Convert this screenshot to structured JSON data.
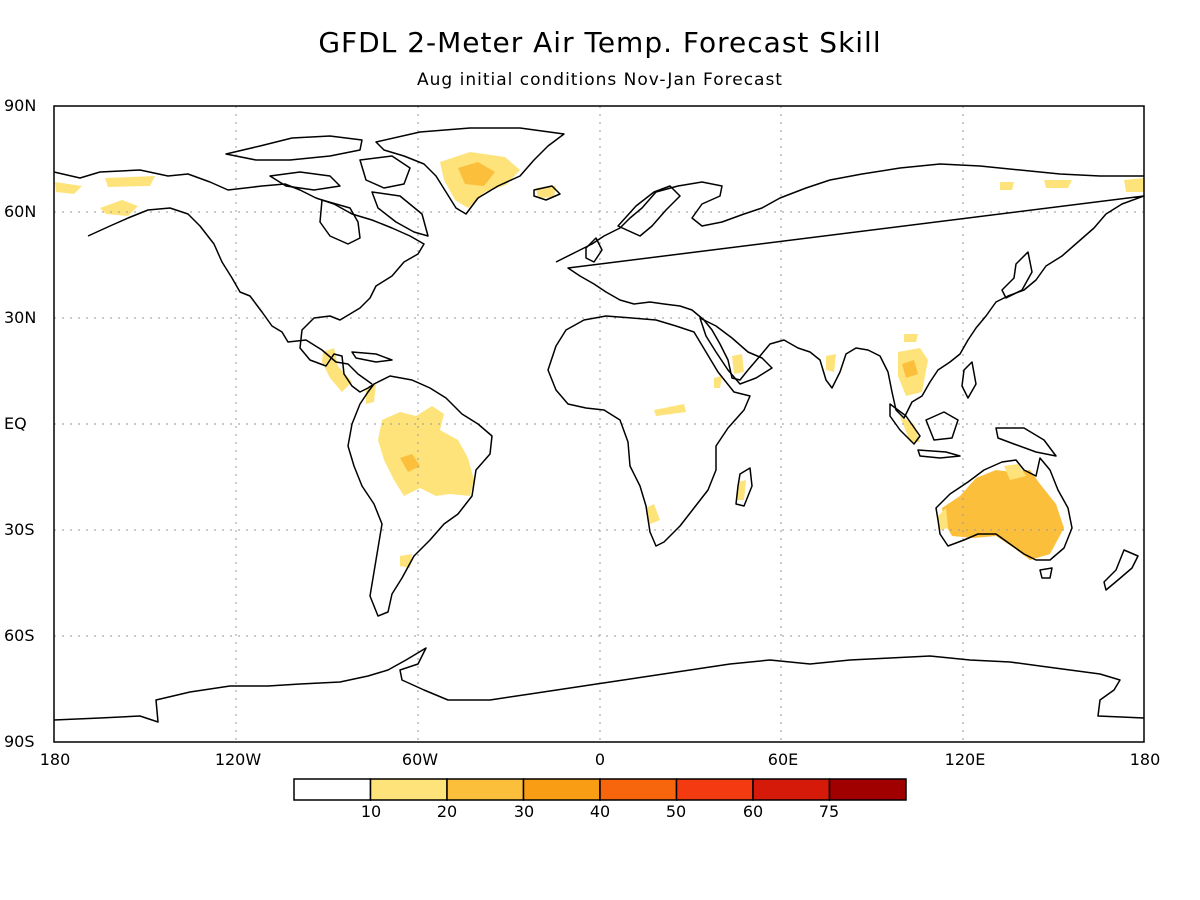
{
  "title": "GFDL 2-Meter Air Temp. Forecast Skill",
  "subtitle": "Aug initial conditions   Nov-Jan Forecast",
  "lat_labels": [
    "90N",
    "60N",
    "30N",
    "EQ",
    "30S",
    "60S",
    "90S"
  ],
  "lon_labels": [
    "180",
    "120W",
    "60W",
    "0",
    "60E",
    "120E",
    "180"
  ],
  "colorbar": {
    "labels": [
      "10",
      "20",
      "30",
      "40",
      "50",
      "60",
      "75"
    ],
    "colors": [
      "#ffffff",
      "#fde37a",
      "#fbbf3c",
      "#f99d15",
      "#f7660c",
      "#f33a10",
      "#d61a0a",
      "#a00000"
    ]
  },
  "colors": {
    "coastline": "#000000",
    "grid": "#9a9a9a",
    "skill_10_20": "#fde37a",
    "skill_20_30": "#fbbf3c"
  }
}
